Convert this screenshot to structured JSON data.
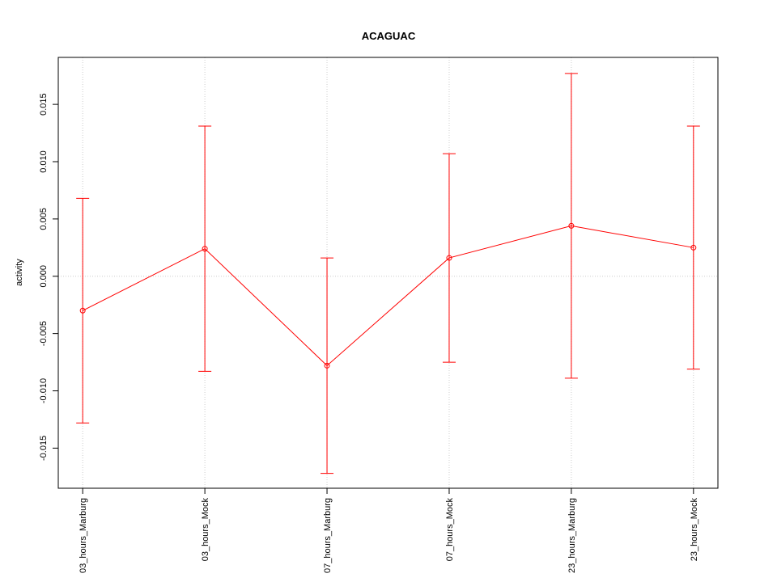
{
  "chart_data": {
    "type": "line",
    "title": "ACAGUAC",
    "y_label": "activity",
    "categories": [
      "03_hours_Marburg",
      "03_hours_Mock",
      "07_hours_Marburg",
      "07_hours_Mock",
      "23_hours_Marburg",
      "23_hours_Mock"
    ],
    "values": [
      -0.003,
      0.0024,
      -0.0078,
      0.0016,
      0.0044,
      0.0025
    ],
    "errors": [
      0.0098,
      0.0107,
      0.0094,
      0.0091,
      0.0133,
      0.0106
    ],
    "color": "#ff0000",
    "ylim": [
      -0.0185,
      0.0191
    ],
    "yticks": [
      -0.015,
      {
        "value": -0.01,
        "label": "-0.010"
      },
      -0.005,
      {
        "value": 0,
        "label": "0.000"
      },
      0.005,
      {
        "value": 0.01,
        "label": "0.010"
      },
      0.015
    ],
    "grid": true,
    "hline": 0
  }
}
